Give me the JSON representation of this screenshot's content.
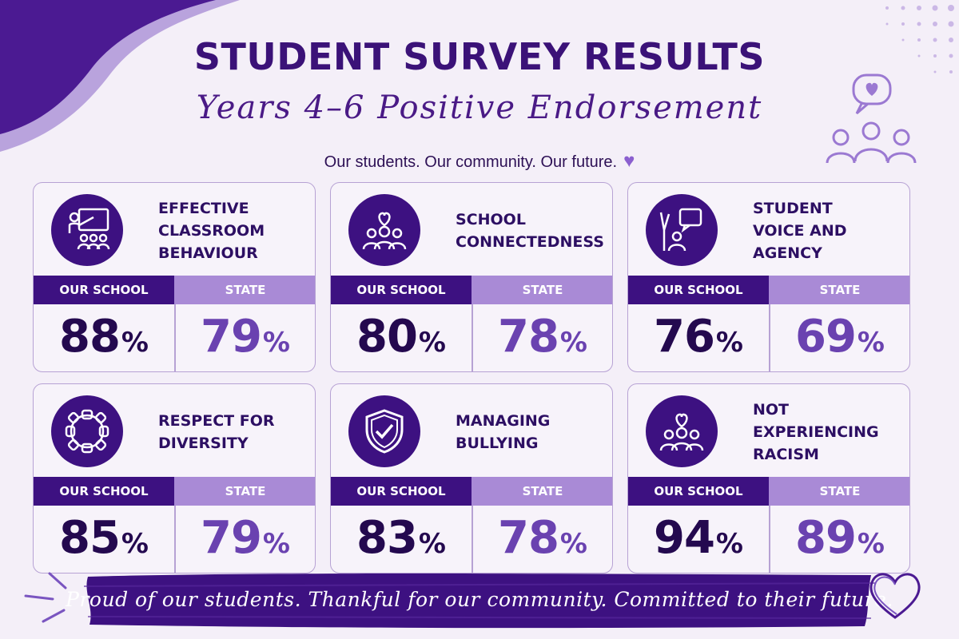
{
  "header": {
    "title": "STUDENT SURVEY RESULTS",
    "subtitle": "Years 4–6 Positive Endorsement",
    "tagline": "Our students. Our community. Our future."
  },
  "labels": {
    "our_school": "OUR SCHOOL",
    "state": "STATE",
    "percent": "%"
  },
  "cards": [
    {
      "title_lines": [
        "EFFECTIVE",
        "CLASSROOM",
        "BEHAVIOUR"
      ],
      "icon": "teacher-classroom-icon",
      "our_school": 88,
      "state": 79
    },
    {
      "title_lines": [
        "SCHOOL",
        "CONNECTEDNESS"
      ],
      "icon": "group-heart-icon",
      "our_school": 80,
      "state": 78
    },
    {
      "title_lines": [
        "STUDENT",
        "VOICE AND",
        "AGENCY"
      ],
      "icon": "raised-hand-speech-icon",
      "our_school": 76,
      "state": 69
    },
    {
      "title_lines": [
        "RESPECT FOR",
        "DIVERSITY"
      ],
      "icon": "linked-hands-circle-icon",
      "our_school": 85,
      "state": 79
    },
    {
      "title_lines": [
        "MANAGING",
        "BULLYING"
      ],
      "icon": "shield-check-icon",
      "our_school": 83,
      "state": 78
    },
    {
      "title_lines": [
        "NOT EXPERIENCING",
        "RACISM"
      ],
      "icon": "group-heart-icon",
      "our_school": 94,
      "state": 89
    }
  ],
  "footer": {
    "text": "Proud of our students. Thankful for our community. Committed to their future."
  },
  "colors": {
    "primary": "#3d1181",
    "accent": "#a98ad6",
    "background": "#f4eff8",
    "state_value": "#6a42b0"
  }
}
